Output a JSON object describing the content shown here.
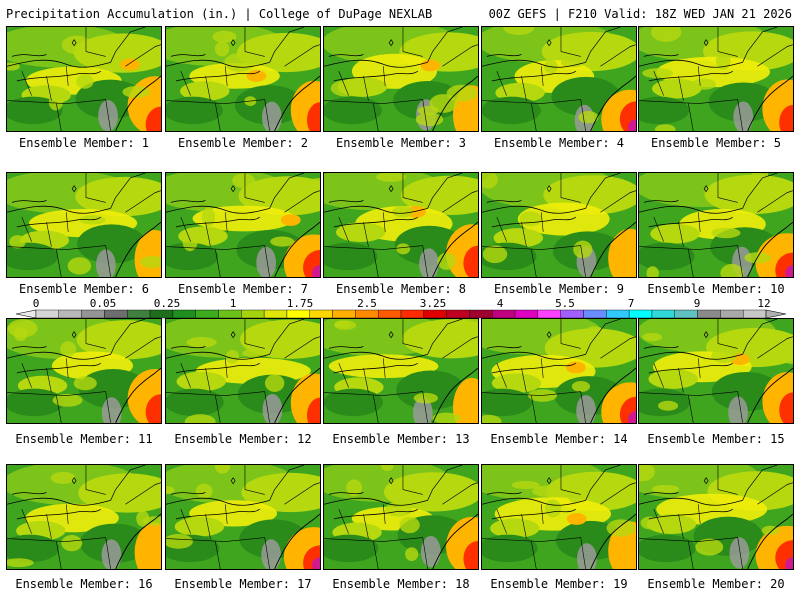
{
  "header": {
    "left": "Precipitation Accumulation (in.) | College of DuPage NEXLAB",
    "right": "00Z GEFS | F210 Valid: 18Z WED JAN 21 2026"
  },
  "colorbar": {
    "tick_labels": [
      "0",
      "0.05",
      "0.25",
      "1",
      "1.75",
      "2.5",
      "3.25",
      "4",
      "5.5",
      "7",
      "9",
      "12"
    ],
    "colors": [
      "#d6d6d6",
      "#b8b8b8",
      "#959595",
      "#6e6e6e",
      "#3f7f3f",
      "#1e6e1e",
      "#1f8f1f",
      "#3cab1e",
      "#6cc21a",
      "#a5d40f",
      "#dfe60a",
      "#ffff00",
      "#ffd700",
      "#ffb000",
      "#ff8a00",
      "#ff5a00",
      "#ff2a00",
      "#e00000",
      "#c00020",
      "#a00030",
      "#c00080",
      "#e000c0",
      "#ff40ff",
      "#a060ff",
      "#6a8cff",
      "#30c8ff",
      "#00ffff",
      "#30d8d8",
      "#60c0c0",
      "#8a8a8a",
      "#a8a8a8",
      "#c8c8c8"
    ]
  },
  "members": [
    {
      "label": "Ensemble Member: 1"
    },
    {
      "label": "Ensemble Member: 2"
    },
    {
      "label": "Ensemble Member: 3"
    },
    {
      "label": "Ensemble Member: 4"
    },
    {
      "label": "Ensemble Member: 5"
    },
    {
      "label": "Ensemble Member: 6"
    },
    {
      "label": "Ensemble Member: 7"
    },
    {
      "label": "Ensemble Member: 8"
    },
    {
      "label": "Ensemble Member: 9"
    },
    {
      "label": "Ensemble Member: 10"
    },
    {
      "label": "Ensemble Member: 11"
    },
    {
      "label": "Ensemble Member: 12"
    },
    {
      "label": "Ensemble Member: 13"
    },
    {
      "label": "Ensemble Member: 14"
    },
    {
      "label": "Ensemble Member: 15"
    },
    {
      "label": "Ensemble Member: 16"
    },
    {
      "label": "Ensemble Member: 17"
    },
    {
      "label": "Ensemble Member: 18"
    },
    {
      "label": "Ensemble Member: 19"
    },
    {
      "label": "Ensemble Member: 20"
    }
  ],
  "palette": {
    "dark_green": "#2a8a1a",
    "green": "#3fa51e",
    "light_green": "#7cc41a",
    "yellow_green": "#b5d80f",
    "yellow": "#f2ee0a",
    "orange": "#ffb400",
    "red": "#ff3000",
    "magenta": "#d01890",
    "gray": "#9a9a9a",
    "boundary": "#000000"
  }
}
